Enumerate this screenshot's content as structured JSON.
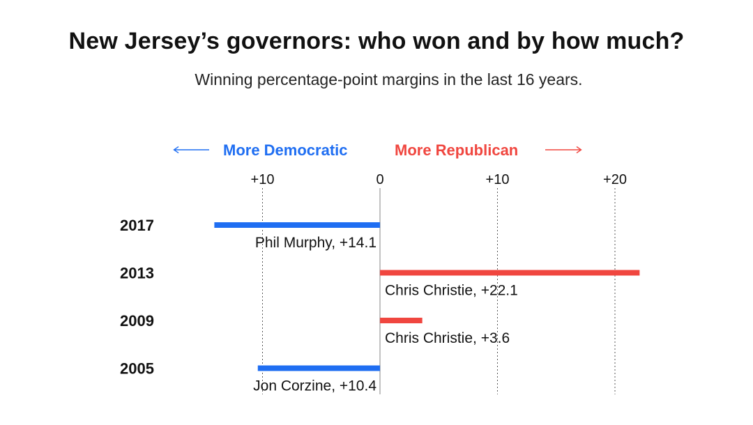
{
  "title": "New Jersey’s governors: who won and by how much?",
  "subtitle": "Winning percentage-point margins in the last 16 years.",
  "chart_data": {
    "type": "bar",
    "orientation": "horizontal",
    "direction_labels": {
      "left": "More Democratic",
      "right": "More Republican"
    },
    "x_ticks": [
      {
        "value": -10,
        "label": "+10"
      },
      {
        "value": 0,
        "label": "0"
      },
      {
        "value": 10,
        "label": "+10"
      },
      {
        "value": 20,
        "label": "+20"
      }
    ],
    "xlim": [
      -14.1,
      22.1
    ],
    "grid": true,
    "rows": [
      {
        "year": "2017",
        "winner": "Phil Murphy",
        "value": -14.1,
        "label": "Phil Murphy, +14.1",
        "party": "Democratic"
      },
      {
        "year": "2013",
        "winner": "Chris Christie",
        "value": 22.1,
        "label": "Chris Christie, +22.1",
        "party": "Republican"
      },
      {
        "year": "2009",
        "winner": "Chris Christie",
        "value": 3.6,
        "label": "Chris Christie, +3.6",
        "party": "Republican"
      },
      {
        "year": "2005",
        "winner": "Jon Corzine",
        "value": -10.4,
        "label": "Jon Corzine, +10.4",
        "party": "Democratic"
      }
    ],
    "colors": {
      "Democratic": "#1f6ef2",
      "Republican": "#f0463f"
    }
  }
}
